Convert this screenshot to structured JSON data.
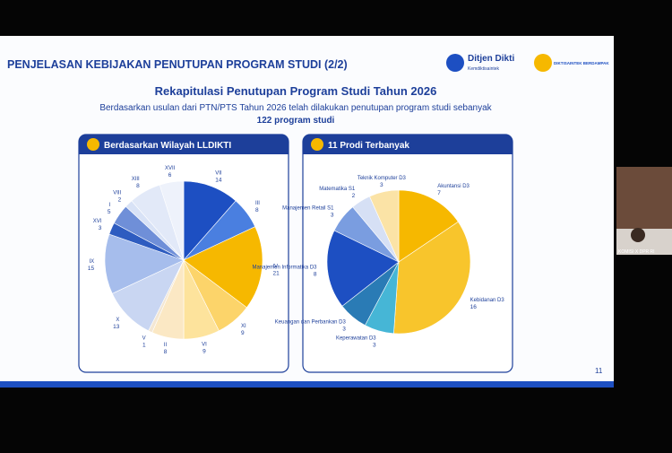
{
  "slide": {
    "title": "PENJELASAN KEBIJAKAN PENUTUPAN PROGRAM STUDI (2/2)",
    "logo1": "Ditjen Dikti",
    "logo1_sub": "Kemdiktisaintek",
    "logo2": "DIKTISAINTEK BERDAMPAK",
    "heading": "Rekapitulasi Penutupan Program Studi Tahun 2026",
    "subheading": "Berdasarkan usulan dari PTN/PTS Tahun 2026 telah dilakukan penutupan program studi sebanyak",
    "total": "122 program studi",
    "page": "11"
  },
  "video": {
    "caption": "KOMISI X DPR RI"
  },
  "chart_data": [
    {
      "type": "pie",
      "title": "Berdasarkan Wilayah LLDIKTI",
      "categories": [
        "VII",
        "III",
        "IV",
        "XI",
        "VI",
        "II",
        "V",
        "X",
        "IX",
        "XVI",
        "I",
        "VIII",
        "XIII",
        "XVII"
      ],
      "values": [
        14,
        8,
        21,
        9,
        9,
        8,
        1,
        13,
        15,
        3,
        5,
        2,
        8,
        6
      ],
      "colors": [
        "#1d4fc2",
        "#4a7fe0",
        "#f6b800",
        "#fcd46a",
        "#fde39c",
        "#fbe8c4",
        "#f3e7d4",
        "#c9d6f2",
        "#a6bdec",
        "#2e5cc0",
        "#6f8fd8",
        "#d8e2f6",
        "#e2e9f8",
        "#eef2fb"
      ]
    },
    {
      "type": "pie",
      "title": "11 Prodi Terbanyak",
      "categories": [
        "Akuntansi D3",
        "Kebidanan D3",
        "Keperawatan D3",
        "Keuangan dan Perbankan D3",
        "Manajemen Informatika D3",
        "Manajemen Retail S1",
        "Matematika S1",
        "Teknik Komputer D3"
      ],
      "values": [
        7,
        16,
        3,
        3,
        8,
        3,
        2,
        3
      ],
      "colors": [
        "#f6b800",
        "#f8c52c",
        "#46b6d6",
        "#2a7bb5",
        "#1d4fc2",
        "#7a9de0",
        "#d6e0f5",
        "#fbe3a6"
      ]
    }
  ]
}
